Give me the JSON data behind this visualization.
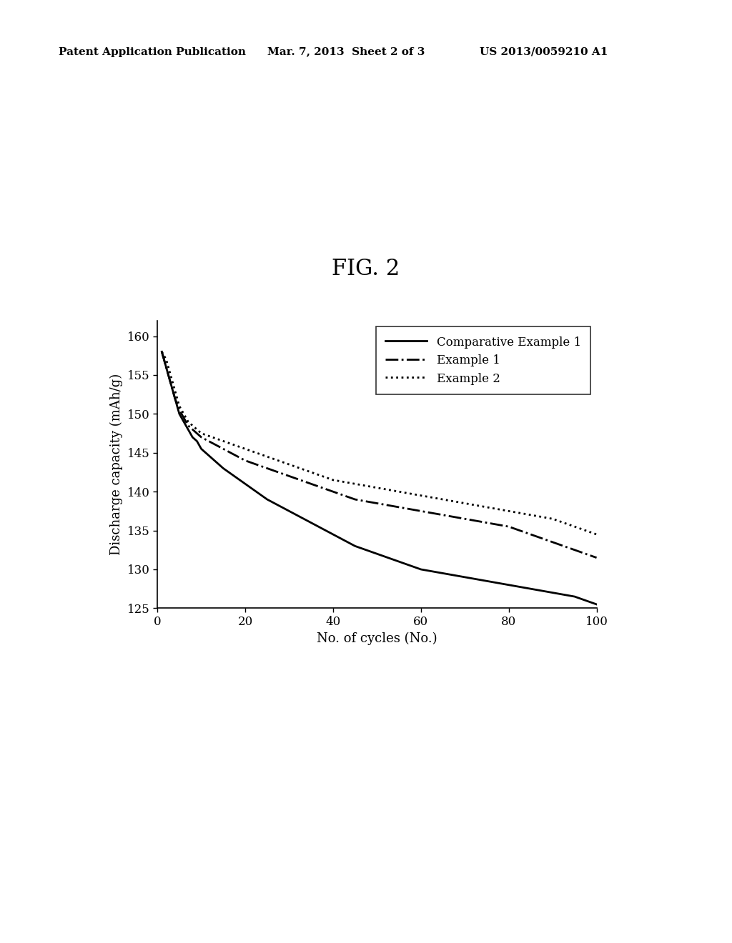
{
  "title": "FIG. 2",
  "xlabel": "No. of cycles (No.)",
  "ylabel": "Discharge capacity (mAh/g)",
  "xlim": [
    0,
    100
  ],
  "ylim": [
    125,
    162
  ],
  "yticks": [
    125,
    130,
    135,
    140,
    145,
    150,
    155,
    160
  ],
  "xticks": [
    0,
    20,
    40,
    60,
    80,
    100
  ],
  "background_color": "#ffffff",
  "header_left": "Patent Application Publication",
  "header_mid": "Mar. 7, 2013  Sheet 2 of 3",
  "header_right": "US 2013/0059210 A1",
  "comp_example1_x": [
    1,
    2,
    3,
    4,
    5,
    6,
    7,
    8,
    9,
    10,
    15,
    20,
    25,
    30,
    35,
    40,
    45,
    50,
    55,
    60,
    65,
    70,
    75,
    80,
    85,
    90,
    95,
    100
  ],
  "comp_example1_y": [
    158,
    156,
    154,
    152,
    150,
    149,
    148,
    147,
    146.5,
    145.5,
    143,
    141,
    139,
    137.5,
    136,
    134.5,
    133,
    132,
    131,
    130,
    129.5,
    129,
    128.5,
    128,
    127.5,
    127,
    126.5,
    125.5
  ],
  "example1_x": [
    1,
    2,
    3,
    4,
    5,
    6,
    7,
    8,
    9,
    10,
    15,
    20,
    25,
    30,
    35,
    40,
    45,
    50,
    55,
    60,
    65,
    70,
    75,
    80,
    85,
    90,
    95,
    100
  ],
  "example1_y": [
    158,
    156,
    154,
    152,
    150.5,
    149.5,
    148.5,
    148,
    147.5,
    147,
    145.5,
    144,
    143,
    142,
    141,
    140,
    139,
    138.5,
    138,
    137.5,
    137,
    136.5,
    136,
    135.5,
    134.5,
    133.5,
    132.5,
    131.5
  ],
  "example2_x": [
    1,
    2,
    3,
    4,
    5,
    6,
    7,
    8,
    9,
    10,
    15,
    20,
    25,
    30,
    35,
    40,
    45,
    50,
    55,
    60,
    65,
    70,
    75,
    80,
    85,
    90,
    95,
    100
  ],
  "example2_y": [
    158,
    157,
    155,
    153,
    151,
    150,
    149,
    148.5,
    148,
    147.5,
    146.5,
    145.5,
    144.5,
    143.5,
    142.5,
    141.5,
    141,
    140.5,
    140,
    139.5,
    139,
    138.5,
    138,
    137.5,
    137,
    136.5,
    135.5,
    134.5
  ],
  "line_color": "#000000",
  "legend_labels": [
    "Comparative Example 1",
    "Example 1",
    "Example 2"
  ],
  "title_fontsize": 22,
  "axis_fontsize": 13,
  "tick_fontsize": 12,
  "legend_fontsize": 12,
  "header_fontsize": 11
}
